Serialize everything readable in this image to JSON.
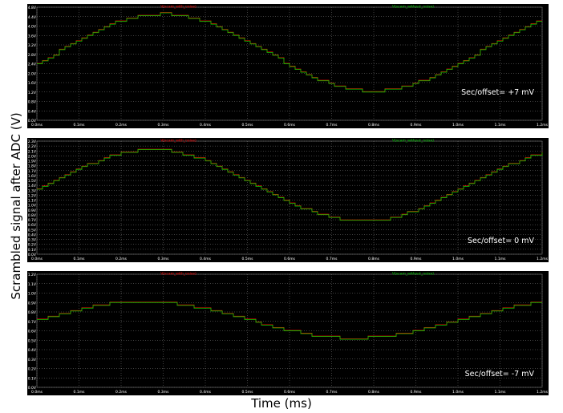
{
  "chart_data": [
    {
      "type": "line",
      "series": [
        {
          "name": "V(scam_with_noise)",
          "color": "#ff0000",
          "wave": {
            "center": 2.87,
            "amplitude": 1.635,
            "peak_x": 0.295,
            "period": 1.0
          }
        },
        {
          "name": "V(scam_without_noise)",
          "color": "#00cc00",
          "wave": {
            "center": 2.87,
            "amplitude": 1.635,
            "peak_x": 0.295,
            "period": 1.0
          }
        }
      ],
      "annotation": "Sec/offset= +7 mV",
      "xlim": [
        0,
        1.2
      ],
      "ylim": [
        0,
        4.8
      ],
      "xticks": [
        "0.0ms",
        "0.1ms",
        "0.2ms",
        "0.3ms",
        "0.4ms",
        "0.5ms",
        "0.6ms",
        "0.7ms",
        "0.8ms",
        "0.9ms",
        "1.0ms",
        "1.1ms",
        "1.2ms"
      ],
      "yticks": [
        "0.0V",
        "0.4V",
        "0.8V",
        "1.2V",
        "1.6V",
        "2.0V",
        "2.4V",
        "2.8V",
        "3.2V",
        "3.6V",
        "4.0V",
        "4.4V",
        "4.8V"
      ],
      "grid": true,
      "scale": "linear"
    },
    {
      "type": "line",
      "series": [
        {
          "name": "V(scam_with_noise)",
          "color": "#ff0000",
          "wave": {
            "center": 1.395,
            "amplitude": 0.725,
            "peak_x": 0.27,
            "period": 1.0
          }
        },
        {
          "name": "V(scam_without_noise)",
          "color": "#00cc00",
          "wave": {
            "center": 1.395,
            "amplitude": 0.725,
            "peak_x": 0.27,
            "period": 1.0
          }
        }
      ],
      "annotation": "Sec/offset= 0 mV",
      "xlim": [
        0,
        1.2
      ],
      "ylim": [
        0,
        2.3
      ],
      "xticks": [
        "0.0ms",
        "0.1ms",
        "0.2ms",
        "0.3ms",
        "0.4ms",
        "0.5ms",
        "0.6ms",
        "0.7ms",
        "0.8ms",
        "0.9ms",
        "1.0ms",
        "1.1ms",
        "1.2ms"
      ],
      "yticks": [
        "0.0V",
        "0.1V",
        "0.2V",
        "0.3V",
        "0.4V",
        "0.5V",
        "0.6V",
        "0.7V",
        "0.8V",
        "0.9V",
        "1.0V",
        "1.1V",
        "1.2V",
        "1.3V",
        "1.4V",
        "1.5V",
        "1.6V",
        "1.7V",
        "1.8V",
        "1.9V",
        "2.0V",
        "2.1V",
        "2.2V",
        "2.3V"
      ],
      "grid": true,
      "scale": "linear"
    },
    {
      "type": "line",
      "series": [
        {
          "name": "V(scam_with_noise)",
          "color": "#ff0000",
          "wave": {
            "center": 0.715,
            "amplitude": 0.195,
            "peak_x": 0.25,
            "period": 1.0
          }
        },
        {
          "name": "V(scam_without_noise)",
          "color": "#00cc00",
          "wave": {
            "center": 0.715,
            "amplitude": 0.195,
            "peak_x": 0.25,
            "period": 1.0
          }
        }
      ],
      "annotation": "Sec/offset= -7 mV",
      "xlim": [
        0,
        1.2
      ],
      "ylim": [
        0,
        1.2
      ],
      "xticks": [
        "0.0ms",
        "0.1ms",
        "0.2ms",
        "0.3ms",
        "0.4ms",
        "0.5ms",
        "0.6ms",
        "0.7ms",
        "0.8ms",
        "0.9ms",
        "1.0ms",
        "1.1ms",
        "1.2ms"
      ],
      "yticks": [
        "0.0V",
        "0.1V",
        "0.2V",
        "0.3V",
        "0.4V",
        "0.5V",
        "0.6V",
        "0.7V",
        "0.8V",
        "0.9V",
        "1.0V",
        "1.1V",
        "1.2V"
      ],
      "grid": true,
      "scale": "linear"
    }
  ],
  "ylabel": "Scrambled signal after ADC (V)",
  "xlabel": "Time (ms)",
  "colors": {
    "plot_background": "#000000",
    "grid": "#808080",
    "tick_text": "#ffffff",
    "annotation_text": "#ffffff"
  }
}
